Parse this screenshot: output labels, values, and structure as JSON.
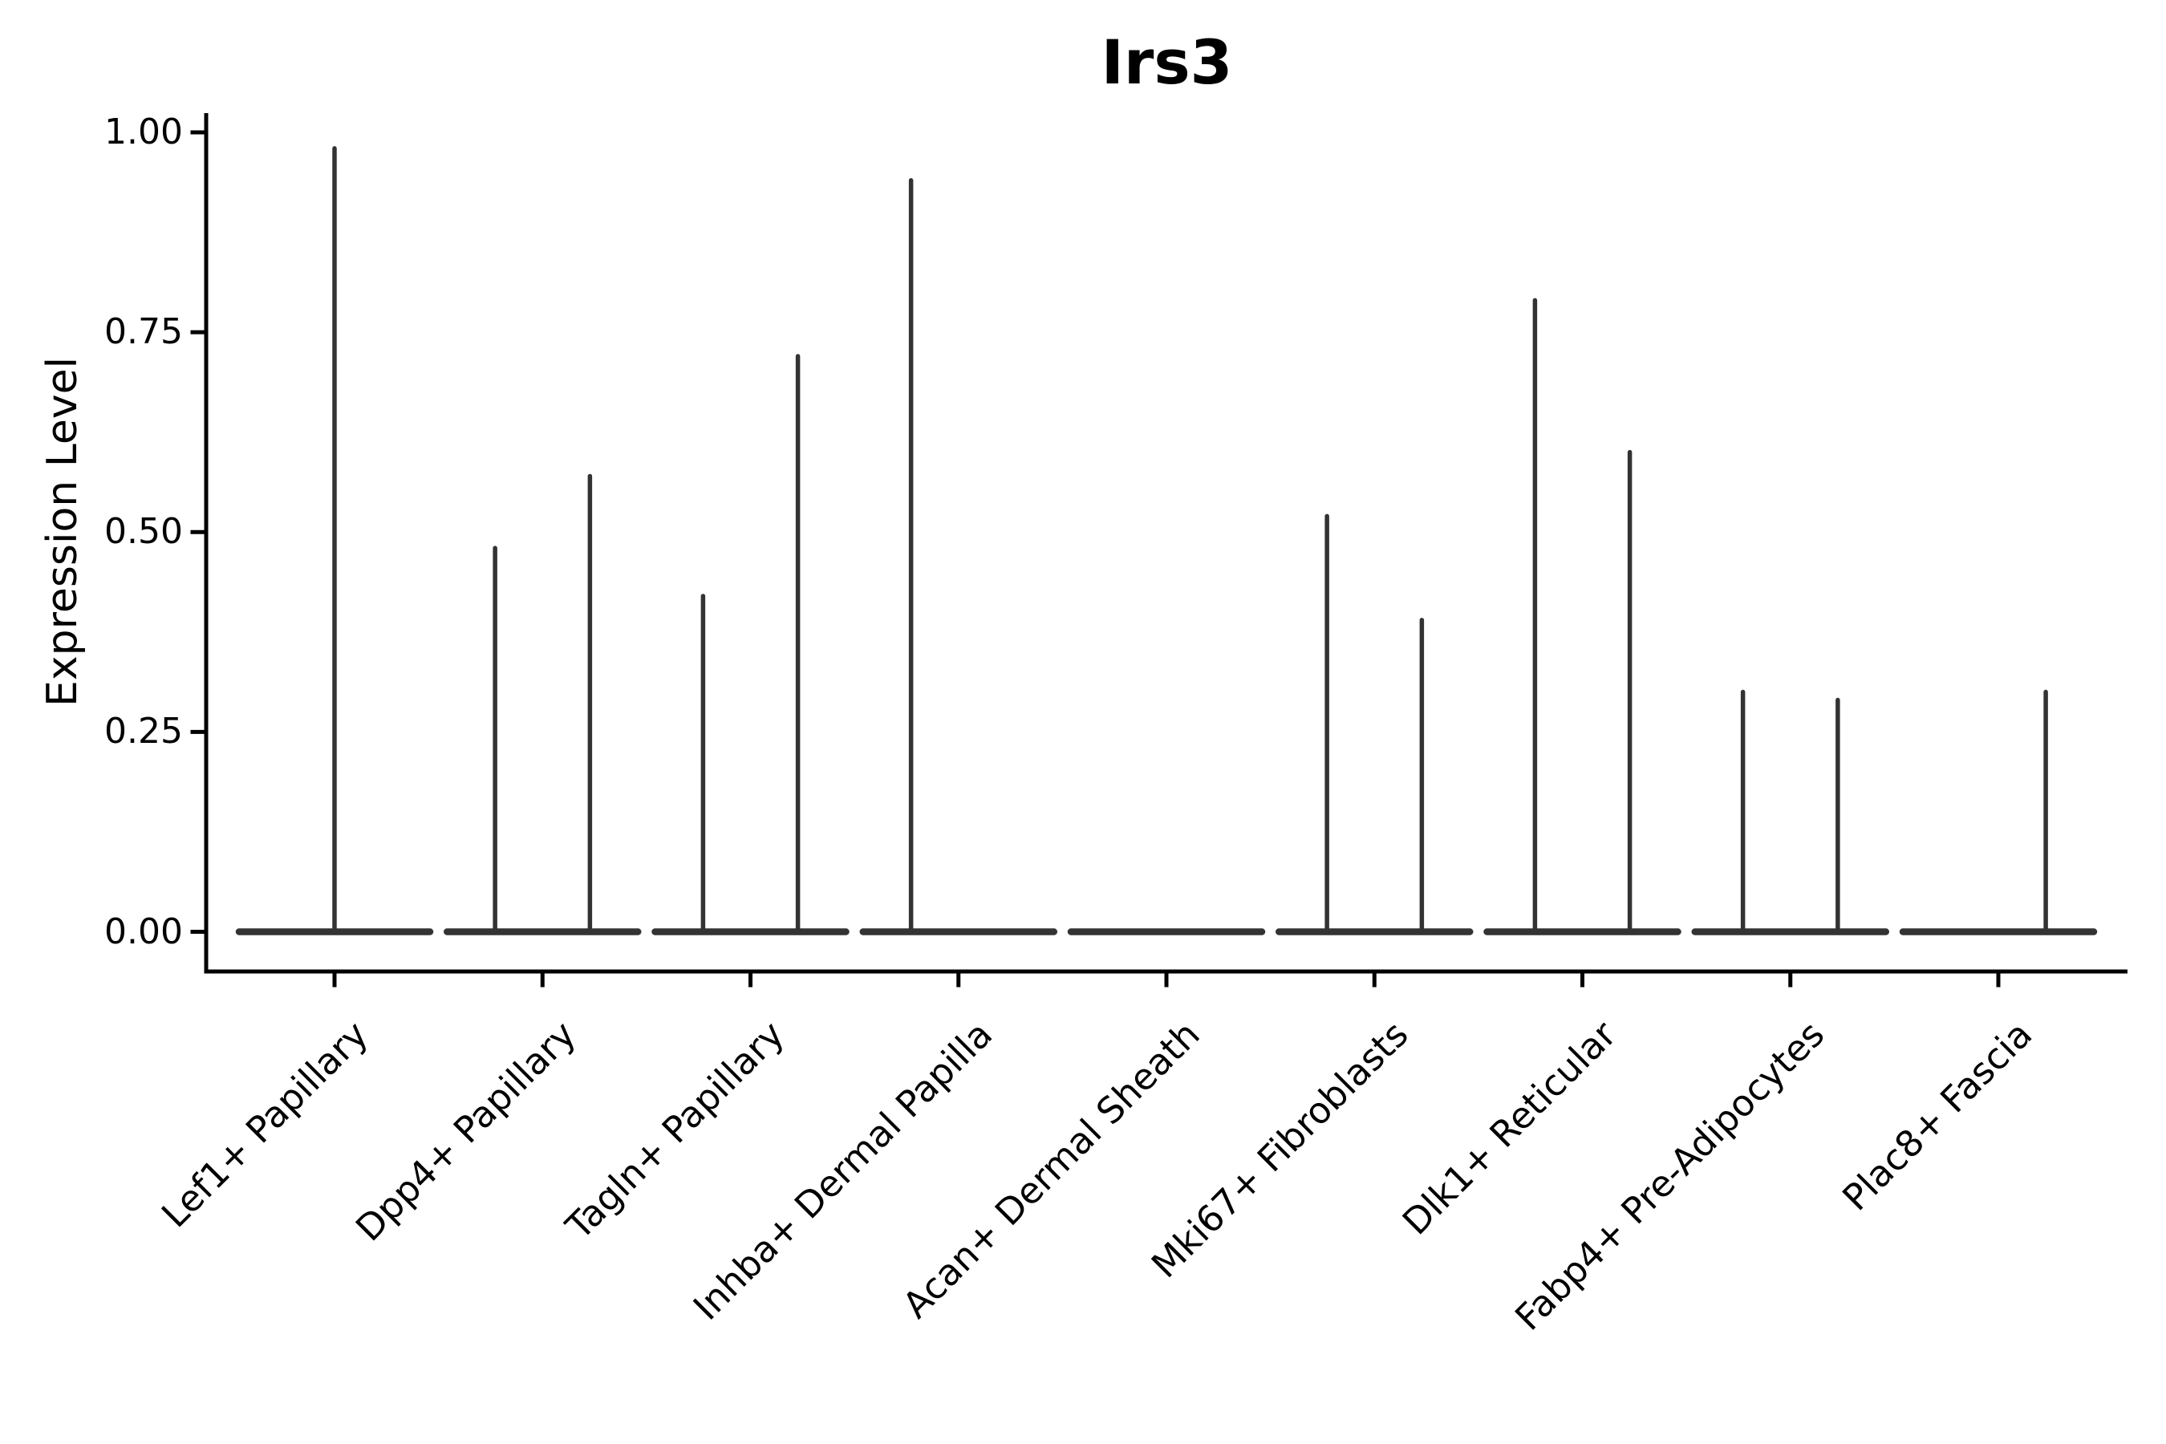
{
  "chart_data": {
    "type": "violin",
    "title": "Irs3",
    "ylabel": "Expression Level",
    "xlabel": "",
    "ylim": [
      0,
      1.0
    ],
    "grid": false,
    "legend": "none",
    "colors": {
      "violin": "#333333",
      "axis": "#000000",
      "text": "#000000",
      "background": "#ffffff"
    },
    "y_axis": {
      "tick_labels": [
        "1.00",
        "0.75",
        "0.50",
        "0.25",
        "0.00"
      ],
      "tick_values": [
        1.0,
        0.75,
        0.5,
        0.25,
        0.0
      ]
    },
    "categories": [
      {
        "label": "Lef1+ Papillary",
        "violins": [
          {
            "position": "center",
            "max_expression": 0.98
          }
        ]
      },
      {
        "label": "Dpp4+ Papillary",
        "violins": [
          {
            "position": "left",
            "max_expression": 0.48
          },
          {
            "position": "right",
            "max_expression": 0.57
          }
        ]
      },
      {
        "label": "Tagln+ Papillary",
        "violins": [
          {
            "position": "left",
            "max_expression": 0.42
          },
          {
            "position": "right",
            "max_expression": 0.72
          }
        ]
      },
      {
        "label": "Inhba+ Dermal Papilla",
        "violins": [
          {
            "position": "left",
            "max_expression": 0.94
          }
        ]
      },
      {
        "label": "Acan+ Dermal Sheath",
        "violins": []
      },
      {
        "label": "Mki67+ Fibroblasts",
        "violins": [
          {
            "position": "left",
            "max_expression": 0.52
          },
          {
            "position": "right",
            "max_expression": 0.39
          }
        ]
      },
      {
        "label": "Dlk1+ Reticular",
        "violins": [
          {
            "position": "left",
            "max_expression": 0.79
          },
          {
            "position": "right",
            "max_expression": 0.6
          }
        ]
      },
      {
        "label": "Fabp4+ Pre-Adipocytes",
        "violins": [
          {
            "position": "left",
            "max_expression": 0.3
          },
          {
            "position": "right",
            "max_expression": 0.29
          }
        ]
      },
      {
        "label": "Plac8+ Fascia",
        "violins": [
          {
            "position": "right",
            "max_expression": 0.3
          }
        ]
      }
    ]
  }
}
